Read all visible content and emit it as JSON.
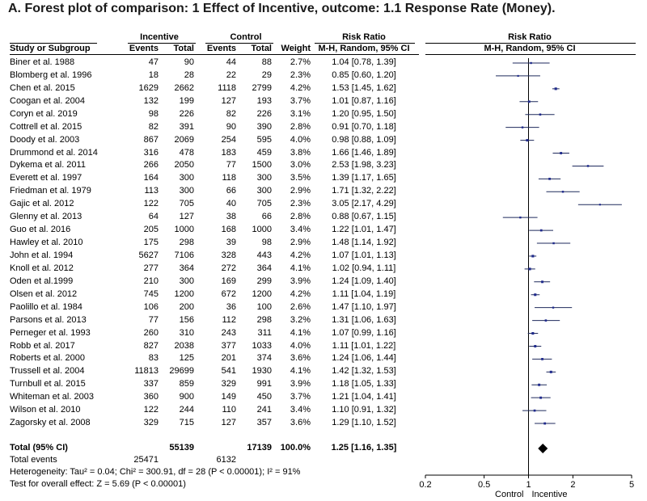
{
  "title": "A. Forest plot of comparison: 1 Effect of Incentive, outcome: 1.1 Response Rate (Money).",
  "headers": {
    "group_incentive": "Incentive",
    "group_control": "Control",
    "risk_ratio_left": "Risk Ratio",
    "risk_ratio_right": "Risk Ratio",
    "study": "Study or Subgroup",
    "events1": "Events",
    "total1": "Total",
    "events2": "Events",
    "total2": "Total",
    "weight": "Weight",
    "method_left": "M-H, Random, 95% CI",
    "method_right": "M-H, Random, 95% CI"
  },
  "chart_data": {
    "type": "forest",
    "x_scale": "log",
    "xlim": [
      0.2,
      5
    ],
    "ticks": [
      "0.2",
      "0.5",
      "1",
      "2",
      "5"
    ],
    "tick_values": [
      0.2,
      0.5,
      1,
      2,
      5
    ],
    "null_value": 1,
    "favours_left": "Control",
    "favours_right": "Incentive",
    "studies": [
      {
        "study": "Biner et al. 1988",
        "e1": "47",
        "n1": "90",
        "e2": "44",
        "n2": "88",
        "weight": "2.7%",
        "rr_text": "1.04 [0.78, 1.39]",
        "rr": 1.04,
        "lo": 0.78,
        "hi": 1.39
      },
      {
        "study": "Blomberg et al. 1996",
        "e1": "18",
        "n1": "28",
        "e2": "22",
        "n2": "29",
        "weight": "2.3%",
        "rr_text": "0.85 [0.60, 1.20]",
        "rr": 0.85,
        "lo": 0.6,
        "hi": 1.2
      },
      {
        "study": "Chen et al. 2015",
        "e1": "1629",
        "n1": "2662",
        "e2": "1118",
        "n2": "2799",
        "weight": "4.2%",
        "rr_text": "1.53 [1.45, 1.62]",
        "rr": 1.53,
        "lo": 1.45,
        "hi": 1.62
      },
      {
        "study": "Coogan et al. 2004",
        "e1": "132",
        "n1": "199",
        "e2": "127",
        "n2": "193",
        "weight": "3.7%",
        "rr_text": "1.01 [0.87, 1.16]",
        "rr": 1.01,
        "lo": 0.87,
        "hi": 1.16
      },
      {
        "study": "Coryn et al. 2019",
        "e1": "98",
        "n1": "226",
        "e2": "82",
        "n2": "226",
        "weight": "3.1%",
        "rr_text": "1.20 [0.95, 1.50]",
        "rr": 1.2,
        "lo": 0.95,
        "hi": 1.5
      },
      {
        "study": "Cottrell et al. 2015",
        "e1": "82",
        "n1": "391",
        "e2": "90",
        "n2": "390",
        "weight": "2.8%",
        "rr_text": "0.91 [0.70, 1.18]",
        "rr": 0.91,
        "lo": 0.7,
        "hi": 1.18
      },
      {
        "study": "Doody et al. 2003",
        "e1": "867",
        "n1": "2069",
        "e2": "254",
        "n2": "595",
        "weight": "4.0%",
        "rr_text": "0.98 [0.88, 1.09]",
        "rr": 0.98,
        "lo": 0.88,
        "hi": 1.09
      },
      {
        "study": "Drummond et al. 2014",
        "e1": "316",
        "n1": "478",
        "e2": "183",
        "n2": "459",
        "weight": "3.8%",
        "rr_text": "1.66 [1.46, 1.89]",
        "rr": 1.66,
        "lo": 1.46,
        "hi": 1.89
      },
      {
        "study": "Dykema et al. 2011",
        "e1": "266",
        "n1": "2050",
        "e2": "77",
        "n2": "1500",
        "weight": "3.0%",
        "rr_text": "2.53 [1.98, 3.23]",
        "rr": 2.53,
        "lo": 1.98,
        "hi": 3.23
      },
      {
        "study": "Everett et al. 1997",
        "e1": "164",
        "n1": "300",
        "e2": "118",
        "n2": "300",
        "weight": "3.5%",
        "rr_text": "1.39 [1.17, 1.65]",
        "rr": 1.39,
        "lo": 1.17,
        "hi": 1.65
      },
      {
        "study": "Friedman et al. 1979",
        "e1": "113",
        "n1": "300",
        "e2": "66",
        "n2": "300",
        "weight": "2.9%",
        "rr_text": "1.71 [1.32, 2.22]",
        "rr": 1.71,
        "lo": 1.32,
        "hi": 2.22
      },
      {
        "study": "Gajic et al. 2012",
        "e1": "122",
        "n1": "705",
        "e2": "40",
        "n2": "705",
        "weight": "2.3%",
        "rr_text": "3.05 [2.17, 4.29]",
        "rr": 3.05,
        "lo": 2.17,
        "hi": 4.29
      },
      {
        "study": "Glenny et al. 2013",
        "e1": "64",
        "n1": "127",
        "e2": "38",
        "n2": "66",
        "weight": "2.8%",
        "rr_text": "0.88 [0.67, 1.15]",
        "rr": 0.88,
        "lo": 0.67,
        "hi": 1.15
      },
      {
        "study": "Guo et al. 2016",
        "e1": "205",
        "n1": "1000",
        "e2": "168",
        "n2": "1000",
        "weight": "3.4%",
        "rr_text": "1.22 [1.01, 1.47]",
        "rr": 1.22,
        "lo": 1.01,
        "hi": 1.47
      },
      {
        "study": "Hawley et al. 2010",
        "e1": "175",
        "n1": "298",
        "e2": "39",
        "n2": "98",
        "weight": "2.9%",
        "rr_text": "1.48 [1.14, 1.92]",
        "rr": 1.48,
        "lo": 1.14,
        "hi": 1.92
      },
      {
        "study": "John et al. 1994",
        "e1": "5627",
        "n1": "7106",
        "e2": "328",
        "n2": "443",
        "weight": "4.2%",
        "rr_text": "1.07 [1.01, 1.13]",
        "rr": 1.07,
        "lo": 1.01,
        "hi": 1.13
      },
      {
        "study": "Knoll et al. 2012",
        "e1": "277",
        "n1": "364",
        "e2": "272",
        "n2": "364",
        "weight": "4.1%",
        "rr_text": "1.02 [0.94, 1.11]",
        "rr": 1.02,
        "lo": 0.94,
        "hi": 1.11
      },
      {
        "study": "Oden et al.1999",
        "e1": "210",
        "n1": "300",
        "e2": "169",
        "n2": "299",
        "weight": "3.9%",
        "rr_text": "1.24 [1.09, 1.40]",
        "rr": 1.24,
        "lo": 1.09,
        "hi": 1.4
      },
      {
        "study": "Olsen et al. 2012",
        "e1": "745",
        "n1": "1200",
        "e2": "672",
        "n2": "1200",
        "weight": "4.2%",
        "rr_text": "1.11 [1.04, 1.19]",
        "rr": 1.11,
        "lo": 1.04,
        "hi": 1.19
      },
      {
        "study": "Paolillo et al. 1984",
        "e1": "106",
        "n1": "200",
        "e2": "36",
        "n2": "100",
        "weight": "2.6%",
        "rr_text": "1.47 [1.10, 1.97]",
        "rr": 1.47,
        "lo": 1.1,
        "hi": 1.97
      },
      {
        "study": "Parsons et al. 2013",
        "e1": "77",
        "n1": "156",
        "e2": "112",
        "n2": "298",
        "weight": "3.2%",
        "rr_text": "1.31 [1.06, 1.63]",
        "rr": 1.31,
        "lo": 1.06,
        "hi": 1.63
      },
      {
        "study": "Perneger et al. 1993",
        "e1": "260",
        "n1": "310",
        "e2": "243",
        "n2": "311",
        "weight": "4.1%",
        "rr_text": "1.07 [0.99, 1.16]",
        "rr": 1.07,
        "lo": 0.99,
        "hi": 1.16
      },
      {
        "study": "Robb et al. 2017",
        "e1": "827",
        "n1": "2038",
        "e2": "377",
        "n2": "1033",
        "weight": "4.0%",
        "rr_text": "1.11 [1.01, 1.22]",
        "rr": 1.11,
        "lo": 1.01,
        "hi": 1.22
      },
      {
        "study": "Roberts et al. 2000",
        "e1": "83",
        "n1": "125",
        "e2": "201",
        "n2": "374",
        "weight": "3.6%",
        "rr_text": "1.24 [1.06, 1.44]",
        "rr": 1.24,
        "lo": 1.06,
        "hi": 1.44
      },
      {
        "study": "Trussell et al. 2004",
        "e1": "11813",
        "n1": "29699",
        "e2": "541",
        "n2": "1930",
        "weight": "4.1%",
        "rr_text": "1.42 [1.32, 1.53]",
        "rr": 1.42,
        "lo": 1.32,
        "hi": 1.53
      },
      {
        "study": "Turnbull et al. 2015",
        "e1": "337",
        "n1": "859",
        "e2": "329",
        "n2": "991",
        "weight": "3.9%",
        "rr_text": "1.18 [1.05, 1.33]",
        "rr": 1.18,
        "lo": 1.05,
        "hi": 1.33
      },
      {
        "study": "Whiteman et al. 2003",
        "e1": "360",
        "n1": "900",
        "e2": "149",
        "n2": "450",
        "weight": "3.7%",
        "rr_text": "1.21 [1.04, 1.41]",
        "rr": 1.21,
        "lo": 1.04,
        "hi": 1.41
      },
      {
        "study": "Wilson et al. 2010",
        "e1": "122",
        "n1": "244",
        "e2": "110",
        "n2": "241",
        "weight": "3.4%",
        "rr_text": "1.10 [0.91, 1.32]",
        "rr": 1.1,
        "lo": 0.91,
        "hi": 1.32
      },
      {
        "study": "Zagorsky et al. 2008",
        "e1": "329",
        "n1": "715",
        "e2": "127",
        "n2": "357",
        "weight": "3.6%",
        "rr_text": "1.29 [1.10, 1.52]",
        "rr": 1.29,
        "lo": 1.1,
        "hi": 1.52
      }
    ],
    "total": {
      "label": "Total (95% CI)",
      "n1": "55139",
      "n2": "17139",
      "weight": "100.0%",
      "rr_text": "1.25 [1.16, 1.35]",
      "rr": 1.25,
      "lo": 1.16,
      "hi": 1.35
    },
    "total_events": {
      "label": "Total events",
      "e1": "25471",
      "e2": "6132"
    },
    "heterogeneity": "Heterogeneity: Tau² = 0.04; Chi² = 300.91, df = 28 (P < 0.00001); I² = 91%",
    "overall_effect": "Test for overall effect: Z = 5.69 (P < 0.00001)"
  }
}
